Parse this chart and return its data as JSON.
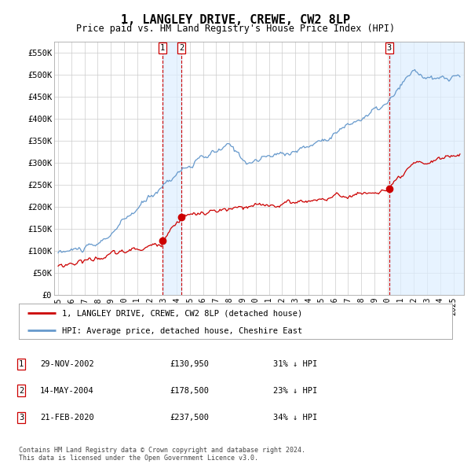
{
  "title": "1, LANGLEY DRIVE, CREWE, CW2 8LP",
  "subtitle": "Price paid vs. HM Land Registry's House Price Index (HPI)",
  "background_color": "#ffffff",
  "plot_bg_color": "#ffffff",
  "grid_color": "#cccccc",
  "ylim": [
    0,
    575000
  ],
  "yticks": [
    0,
    50000,
    100000,
    150000,
    200000,
    250000,
    300000,
    350000,
    400000,
    450000,
    500000,
    550000
  ],
  "ytick_labels": [
    "£0",
    "£50K",
    "£100K",
    "£150K",
    "£200K",
    "£250K",
    "£300K",
    "£350K",
    "£400K",
    "£450K",
    "£500K",
    "£550K"
  ],
  "xlabel_years": [
    "1995",
    "1996",
    "1997",
    "1998",
    "1999",
    "2000",
    "2001",
    "2002",
    "2003",
    "2004",
    "2005",
    "2006",
    "2007",
    "2008",
    "2009",
    "2010",
    "2011",
    "2012",
    "2013",
    "2014",
    "2015",
    "2016",
    "2017",
    "2018",
    "2019",
    "2020",
    "2021",
    "2022",
    "2023",
    "2024",
    "2025"
  ],
  "transaction_color": "#cc0000",
  "hpi_color": "#6699cc",
  "vertical_line_color": "#cc0000",
  "transactions": [
    {
      "date": 2002.91,
      "price": 130950,
      "label": "1"
    },
    {
      "date": 2004.37,
      "price": 178500,
      "label": "2"
    },
    {
      "date": 2020.13,
      "price": 237500,
      "label": "3"
    }
  ],
  "legend_entries": [
    "1, LANGLEY DRIVE, CREWE, CW2 8LP (detached house)",
    "HPI: Average price, detached house, Cheshire East"
  ],
  "table_rows": [
    {
      "num": "1",
      "date": "29-NOV-2002",
      "price": "£130,950",
      "change": "31% ↓ HPI"
    },
    {
      "num": "2",
      "date": "14-MAY-2004",
      "price": "£178,500",
      "change": "23% ↓ HPI"
    },
    {
      "num": "3",
      "date": "21-FEB-2020",
      "price": "£237,500",
      "change": "34% ↓ HPI"
    }
  ],
  "footer": "Contains HM Land Registry data © Crown copyright and database right 2024.\nThis data is licensed under the Open Government Licence v3.0."
}
